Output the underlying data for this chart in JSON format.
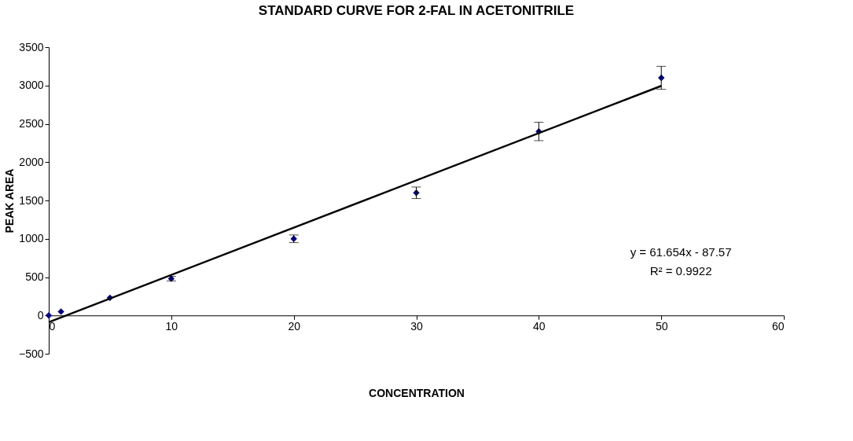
{
  "chart_data": {
    "type": "scatter",
    "title": "STANDARD CURVE FOR 2-FAL IN ACETONITRILE",
    "xlabel": "CONCENTRATION",
    "ylabel": "PEAK AREA",
    "x": [
      0,
      1,
      5,
      10,
      20,
      30,
      40,
      50
    ],
    "series": [
      {
        "color": "#000080",
        "marker": "diamond",
        "values": [
          0,
          50,
          230,
          480,
          1000,
          1600,
          2400,
          3100
        ],
        "errors": [
          null,
          null,
          null,
          30,
          50,
          75,
          120,
          150
        ]
      },
      {
        "type": "line",
        "color": "#000000",
        "x": [
          0,
          50
        ],
        "values": [
          -88,
          2995
        ],
        "line_style": "solid"
      }
    ],
    "xlim": [
      0,
      60
    ],
    "xticks": [
      0,
      10,
      20,
      30,
      40,
      50,
      60
    ],
    "ylim": [
      -500,
      3500
    ],
    "yticks": [
      -500,
      0,
      500,
      1000,
      1500,
      2000,
      2500,
      3000,
      3500
    ],
    "grid": false,
    "annotations": [
      "y = 61.654x - 87.57",
      "R² = 0.9922"
    ]
  }
}
